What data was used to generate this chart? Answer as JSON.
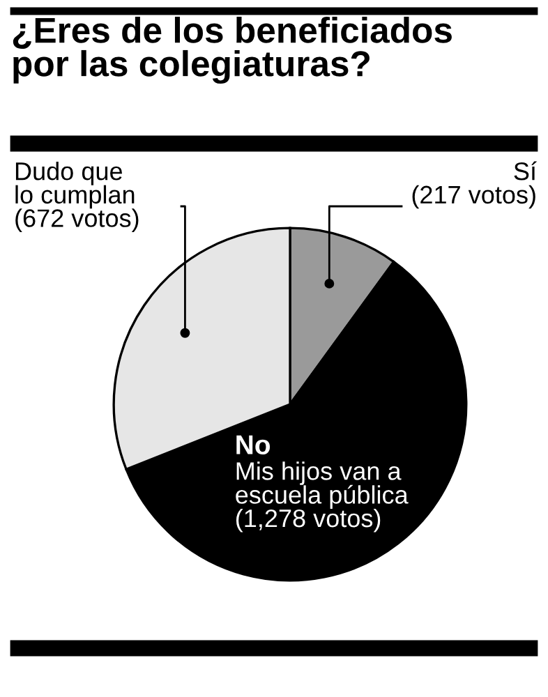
{
  "chart_data": {
    "type": "pie",
    "title": "¿Eres de los beneficiados\npor las colegiaturas?",
    "categories": [
      "Sí",
      "No\nMis hijos van a\nescuela pública",
      "Dudo que\nlo cumplan"
    ],
    "values": [
      217,
      1278,
      672
    ],
    "value_labels": [
      "(217 votos)",
      "(1,278 votos)",
      "(672 votos)"
    ],
    "colors": [
      "#9a9a9a",
      "#000000",
      "#e6e6e6"
    ]
  }
}
